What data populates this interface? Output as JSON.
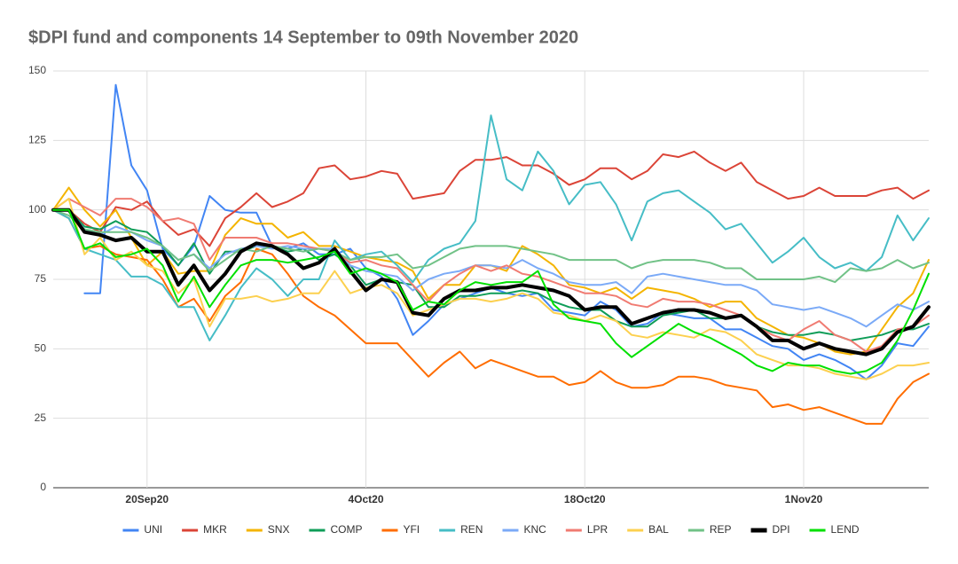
{
  "chart_data": {
    "type": "line",
    "title": "$DPI fund and components 14 September to 09th November 2020",
    "categories": [
      null,
      null,
      null,
      null,
      null,
      null,
      "20Sep20",
      null,
      null,
      null,
      null,
      null,
      null,
      null,
      null,
      null,
      null,
      null,
      null,
      null,
      "4Oct20",
      null,
      null,
      null,
      null,
      null,
      null,
      null,
      null,
      null,
      null,
      null,
      null,
      null,
      "18Oct20",
      null,
      null,
      null,
      null,
      null,
      null,
      null,
      null,
      null,
      null,
      null,
      null,
      null,
      "1Nov20",
      null,
      null,
      null,
      null,
      null,
      null,
      null,
      null
    ],
    "ylim": [
      0,
      150
    ],
    "yticks": [
      0,
      25,
      50,
      75,
      100,
      125,
      150
    ],
    "grid": true,
    "legend": "bottom",
    "series": [
      {
        "name": "UNI",
        "color": "#4285f4",
        "line_width": 2,
        "values": [
          null,
          null,
          70,
          70,
          145,
          116,
          107,
          86,
          80,
          87,
          105,
          100,
          99,
          99,
          87,
          86,
          88,
          84,
          84,
          86,
          79,
          76,
          68,
          55,
          60,
          66,
          68,
          70,
          72,
          70,
          69,
          70,
          64,
          63,
          62,
          67,
          64,
          58,
          59,
          63,
          62,
          61,
          61,
          57,
          57,
          54,
          51,
          50,
          46,
          48,
          46,
          43,
          39,
          44,
          52,
          51,
          58
        ]
      },
      {
        "name": "MKR",
        "color": "#db4437",
        "line_width": 2,
        "values": [
          100,
          100,
          95,
          92,
          101,
          100,
          103,
          96,
          91,
          93,
          87,
          97,
          101,
          106,
          101,
          103,
          106,
          115,
          116,
          111,
          112,
          114,
          113,
          104,
          105,
          106,
          114,
          118,
          118,
          119,
          116,
          116,
          113,
          109,
          111,
          115,
          115,
          111,
          114,
          120,
          119,
          121,
          117,
          114,
          117,
          110,
          107,
          104,
          105,
          108,
          105,
          105,
          105,
          107,
          108,
          104,
          107
        ]
      },
      {
        "name": "SNX",
        "color": "#f4b400",
        "line_width": 2,
        "values": [
          100,
          108,
          100,
          94,
          100,
          90,
          80,
          85,
          77,
          78,
          78,
          91,
          97,
          95,
          95,
          90,
          92,
          87,
          87,
          85,
          83,
          82,
          81,
          78,
          68,
          73,
          73,
          80,
          80,
          78,
          87,
          84,
          80,
          73,
          72,
          70,
          72,
          68,
          72,
          71,
          70,
          68,
          65,
          67,
          67,
          61,
          58,
          55,
          54,
          52,
          49,
          48,
          49,
          57,
          65,
          70,
          82
        ]
      },
      {
        "name": "COMP",
        "color": "#0f9d58",
        "line_width": 2,
        "values": [
          100,
          100,
          94,
          93,
          96,
          93,
          92,
          87,
          80,
          88,
          77,
          85,
          85,
          87,
          87,
          85,
          86,
          82,
          84,
          80,
          73,
          75,
          74,
          73,
          65,
          65,
          69,
          69,
          70,
          70,
          71,
          70,
          67,
          65,
          64,
          64,
          60,
          58,
          58,
          62,
          63,
          64,
          61,
          61,
          62,
          58,
          56,
          55,
          55,
          56,
          55,
          53,
          54,
          55,
          57,
          57,
          59
        ]
      },
      {
        "name": "YFI",
        "color": "#ff6d00",
        "line_width": 2,
        "values": [
          100,
          97,
          86,
          87,
          84,
          83,
          82,
          75,
          65,
          68,
          60,
          69,
          74,
          86,
          84,
          77,
          69,
          65,
          62,
          57,
          52,
          52,
          52,
          46,
          40,
          45,
          49,
          43,
          46,
          44,
          42,
          40,
          40,
          37,
          38,
          42,
          38,
          36,
          36,
          37,
          40,
          40,
          39,
          37,
          36,
          35,
          29,
          30,
          28,
          29,
          27,
          25,
          23,
          23,
          32,
          38,
          41
        ]
      },
      {
        "name": "REN",
        "color": "#46bdc6",
        "line_width": 2,
        "values": [
          100,
          97,
          86,
          84,
          82,
          76,
          76,
          73,
          65,
          65,
          53,
          62,
          72,
          79,
          75,
          69,
          75,
          75,
          89,
          82,
          84,
          85,
          80,
          74,
          82,
          86,
          88,
          96,
          134,
          111,
          107,
          121,
          114,
          102,
          109,
          110,
          102,
          89,
          103,
          106,
          107,
          103,
          99,
          93,
          95,
          88,
          81,
          85,
          90,
          83,
          79,
          81,
          78,
          83,
          98,
          89,
          97
        ]
      },
      {
        "name": "KNC",
        "color": "#7baaf7",
        "line_width": 2,
        "values": [
          100,
          100,
          93,
          91,
          94,
          92,
          89,
          87,
          82,
          84,
          79,
          84,
          86,
          87,
          86,
          87,
          86,
          86,
          86,
          80,
          78,
          77,
          76,
          71,
          75,
          77,
          78,
          80,
          80,
          79,
          82,
          79,
          77,
          74,
          73,
          73,
          74,
          70,
          76,
          77,
          76,
          75,
          74,
          73,
          73,
          71,
          66,
          65,
          64,
          65,
          63,
          61,
          58,
          62,
          66,
          64,
          67
        ]
      },
      {
        "name": "LPR",
        "color": "#f07b72",
        "line_width": 2,
        "values": [
          100,
          104,
          101,
          98,
          104,
          104,
          101,
          96,
          97,
          95,
          82,
          90,
          90,
          90,
          88,
          88,
          87,
          86,
          85,
          81,
          82,
          80,
          79,
          73,
          67,
          73,
          77,
          80,
          78,
          80,
          77,
          76,
          74,
          72,
          70,
          70,
          69,
          66,
          65,
          68,
          67,
          67,
          66,
          64,
          62,
          58,
          55,
          53,
          57,
          60,
          55,
          53,
          49,
          51,
          57,
          58,
          62
        ]
      },
      {
        "name": "BAL",
        "color": "#fcd04f",
        "line_width": 2,
        "values": [
          100,
          104,
          84,
          90,
          82,
          85,
          80,
          78,
          70,
          75,
          58,
          68,
          68,
          69,
          67,
          68,
          70,
          70,
          78,
          70,
          72,
          73,
          70,
          62,
          64,
          66,
          68,
          68,
          67,
          68,
          70,
          68,
          63,
          62,
          60,
          62,
          60,
          55,
          54,
          56,
          55,
          54,
          57,
          56,
          53,
          48,
          46,
          44,
          44,
          43,
          41,
          40,
          39,
          41,
          44,
          44,
          45
        ]
      },
      {
        "name": "REP",
        "color": "#71c287",
        "line_width": 2,
        "values": [
          100,
          98,
          93,
          92,
          92,
          92,
          90,
          87,
          82,
          84,
          78,
          82,
          86,
          85,
          87,
          86,
          85,
          86,
          85,
          82,
          83,
          83,
          84,
          79,
          80,
          83,
          86,
          87,
          87,
          87,
          86,
          85,
          84,
          82,
          82,
          82,
          82,
          79,
          81,
          82,
          82,
          82,
          81,
          79,
          79,
          75,
          75,
          75,
          75,
          76,
          74,
          79,
          78,
          79,
          82,
          79,
          81
        ]
      },
      {
        "name": "DPI",
        "color": "#000000",
        "line_width": 4,
        "values": [
          100,
          100,
          92,
          91,
          89,
          90,
          85,
          85,
          73,
          80,
          71,
          77,
          85,
          88,
          87,
          84,
          79,
          81,
          86,
          78,
          71,
          75,
          74,
          63,
          62,
          68,
          71,
          71,
          72,
          72,
          73,
          72,
          71,
          69,
          64,
          65,
          65,
          59,
          61,
          63,
          64,
          64,
          63,
          61,
          62,
          58,
          53,
          53,
          50,
          52,
          50,
          49,
          48,
          50,
          56,
          58,
          65
        ]
      },
      {
        "name": "LEND",
        "color": "#00e000",
        "line_width": 2,
        "values": [
          100,
          100,
          86,
          88,
          83,
          84,
          86,
          80,
          67,
          76,
          65,
          73,
          80,
          82,
          82,
          81,
          82,
          83,
          85,
          77,
          79,
          77,
          74,
          64,
          67,
          66,
          71,
          74,
          73,
          74,
          74,
          78,
          66,
          61,
          60,
          59,
          52,
          47,
          51,
          55,
          59,
          56,
          54,
          51,
          48,
          44,
          42,
          45,
          44,
          44,
          42,
          41,
          42,
          45,
          53,
          64,
          77
        ]
      }
    ]
  }
}
